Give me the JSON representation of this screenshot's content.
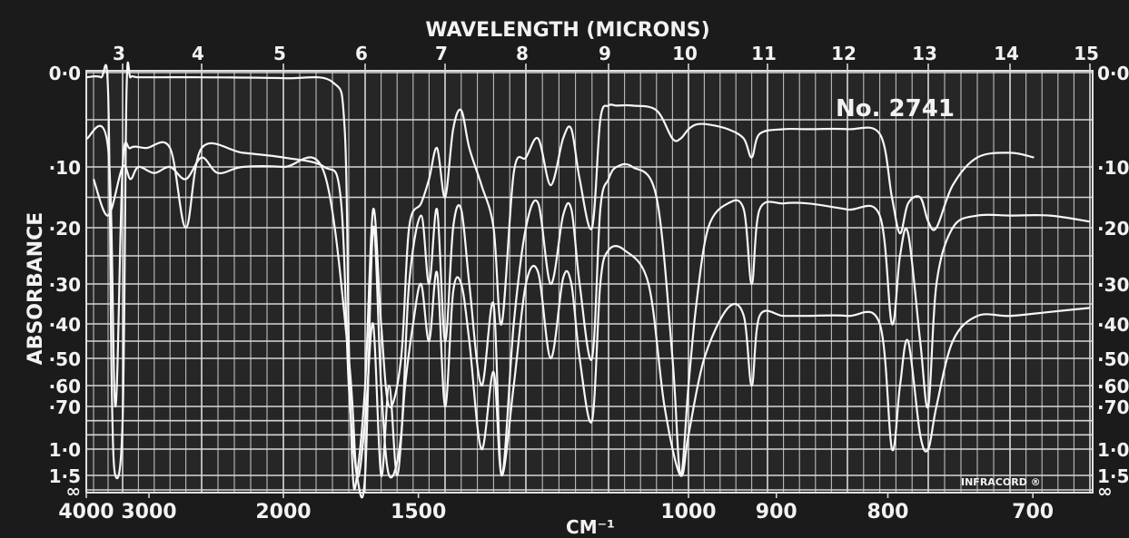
{
  "chart_data": {
    "type": "line",
    "title": "No. 2741",
    "top_axis_label": "WAVELENGTH (MICRONS)",
    "bottom_axis_label": "CM⁻¹",
    "ylabel": "ABSORBANCE",
    "stamp": "INFRACORD ®",
    "top_ticks": [
      "3",
      "4",
      "5",
      "6",
      "7",
      "8",
      "9",
      "10",
      "11",
      "12",
      "13",
      "14",
      "15"
    ],
    "bottom_ticks": [
      "4000",
      "3000",
      "2000",
      "1500",
      "1000",
      "900",
      "800",
      "700"
    ],
    "y_ticks_left": [
      "0·0",
      "·10",
      "·20",
      "·30",
      "·40",
      "·50",
      "·60",
      "·70",
      "1·0",
      "1·5",
      "∞"
    ],
    "y_ticks_right": [
      "0·0",
      "·10",
      "·20",
      "·30",
      "·40",
      "·50",
      "·60",
      "·70",
      "1·0",
      "1·5",
      "∞"
    ],
    "x_unit": "microns",
    "xlim": [
      2.5,
      15
    ],
    "ylim": [
      0,
      1.5
    ],
    "grid": true,
    "series": [
      {
        "x": [
          2.5,
          2.7,
          2.8,
          2.85,
          2.9,
          3.0,
          3.05,
          3.1,
          3.2,
          3.5,
          4.0,
          5.0,
          5.6,
          5.75,
          5.8,
          5.85,
          5.9,
          6.0,
          6.1,
          6.2,
          6.3,
          6.45,
          6.55,
          6.7,
          6.8,
          6.9,
          7.0,
          7.1,
          7.2,
          7.3,
          7.45,
          7.6,
          7.7,
          7.85,
          8.0,
          8.15,
          8.3,
          8.45,
          8.55,
          8.65,
          8.8,
          8.9,
          9.0,
          9.1,
          9.3,
          9.6,
          9.8,
          9.9,
          10.0,
          10.1,
          10.25,
          10.5,
          10.7,
          10.8,
          10.9,
          11.2,
          11.5,
          12.0,
          12.4,
          12.55,
          12.65,
          12.75,
          12.9,
          13.0,
          13.1,
          13.3,
          13.6,
          14.0,
          14.3
        ],
        "y": [
          0.005,
          0.005,
          0.02,
          0.6,
          1.5,
          0.8,
          0.02,
          0.005,
          0.005,
          0.005,
          0.005,
          0.006,
          0.01,
          0.06,
          0.45,
          1.5,
          1.5,
          0.6,
          0.17,
          0.4,
          0.7,
          0.5,
          0.2,
          0.16,
          0.12,
          0.08,
          0.15,
          0.06,
          0.04,
          0.08,
          0.13,
          0.2,
          0.4,
          0.11,
          0.09,
          0.07,
          0.13,
          0.07,
          0.06,
          0.12,
          0.2,
          0.05,
          0.035,
          0.035,
          0.035,
          0.04,
          0.07,
          0.07,
          0.06,
          0.055,
          0.055,
          0.06,
          0.07,
          0.09,
          0.065,
          0.06,
          0.06,
          0.06,
          0.065,
          0.15,
          0.21,
          0.16,
          0.15,
          0.19,
          0.2,
          0.13,
          0.09,
          0.085,
          0.09
        ]
      },
      {
        "x": [
          2.5,
          2.8,
          2.9,
          3.0,
          3.1,
          3.3,
          3.6,
          3.8,
          4.0,
          4.5,
          5.0,
          5.5,
          5.7,
          5.8,
          5.9,
          6.0,
          6.1,
          6.2,
          6.3,
          6.45,
          6.55,
          6.7,
          6.8,
          6.9,
          7.0,
          7.1,
          7.2,
          7.3,
          7.45,
          7.6,
          7.7,
          7.85,
          8.0,
          8.15,
          8.3,
          8.45,
          8.55,
          8.65,
          8.8,
          8.9,
          9.0,
          9.1,
          9.3,
          9.6,
          9.8,
          9.9,
          10.0,
          10.1,
          10.25,
          10.5,
          10.7,
          10.8,
          10.9,
          11.2,
          11.5,
          12.0,
          12.4,
          12.55,
          12.65,
          12.75,
          12.9,
          13.0,
          13.1,
          13.3,
          13.6,
          14.0,
          14.5,
          15.0
        ],
        "y": [
          0.07,
          0.08,
          0.7,
          0.1,
          0.08,
          0.08,
          0.08,
          0.2,
          0.08,
          0.085,
          0.09,
          0.1,
          0.15,
          0.6,
          1.5,
          1.5,
          0.2,
          0.6,
          1.5,
          0.9,
          0.3,
          0.18,
          0.3,
          0.17,
          0.45,
          0.2,
          0.17,
          0.3,
          0.6,
          0.35,
          1.5,
          0.4,
          0.2,
          0.16,
          0.3,
          0.18,
          0.17,
          0.3,
          0.5,
          0.17,
          0.12,
          0.1,
          0.1,
          0.15,
          0.5,
          1.5,
          0.6,
          0.35,
          0.2,
          0.16,
          0.17,
          0.3,
          0.17,
          0.16,
          0.16,
          0.17,
          0.18,
          0.4,
          0.25,
          0.21,
          0.45,
          0.7,
          0.3,
          0.2,
          0.18,
          0.18,
          0.18,
          0.19
        ]
      },
      {
        "x": [
          2.6,
          2.8,
          3.0,
          3.1,
          3.2,
          3.4,
          3.6,
          3.8,
          4.0,
          4.2,
          4.5,
          5.0,
          5.5,
          5.8,
          5.9,
          6.0,
          6.1,
          6.2,
          6.3,
          6.4,
          6.5,
          6.6,
          6.7,
          6.8,
          6.9,
          7.0,
          7.1,
          7.2,
          7.3,
          7.45,
          7.6,
          7.7,
          7.85,
          8.0,
          8.15,
          8.3,
          8.45,
          8.55,
          8.65,
          8.8,
          8.9,
          9.0,
          9.2,
          9.5,
          9.7,
          9.9,
          10.0,
          10.2,
          10.5,
          10.7,
          10.8,
          10.9,
          11.2,
          11.5,
          12.0,
          12.4,
          12.55,
          12.65,
          12.75,
          12.9,
          13.0,
          13.1,
          13.3,
          13.6,
          14.0,
          14.5,
          15.0
        ],
        "y": [
          0.12,
          0.18,
          0.1,
          0.12,
          0.1,
          0.11,
          0.1,
          0.12,
          0.09,
          0.11,
          0.1,
          0.1,
          0.11,
          0.5,
          1.5,
          0.8,
          0.4,
          1.5,
          0.6,
          1.5,
          0.6,
          0.4,
          0.3,
          0.45,
          0.28,
          0.7,
          0.32,
          0.3,
          0.45,
          1.0,
          0.55,
          1.5,
          0.6,
          0.3,
          0.28,
          0.5,
          0.29,
          0.3,
          0.5,
          0.8,
          0.3,
          0.24,
          0.24,
          0.3,
          0.7,
          1.5,
          0.9,
          0.5,
          0.36,
          0.38,
          0.6,
          0.38,
          0.38,
          0.38,
          0.38,
          0.4,
          1.0,
          0.6,
          0.45,
          0.9,
          1.0,
          0.7,
          0.45,
          0.38,
          0.38,
          0.37,
          0.36
        ]
      }
    ]
  }
}
